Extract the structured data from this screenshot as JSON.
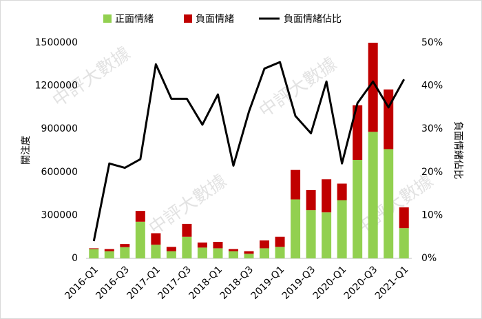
{
  "chart_data": {
    "type": "bar-line",
    "categories": [
      "2016-Q1",
      null,
      "2016-Q3",
      null,
      "2017-Q1",
      null,
      "2017-Q3",
      null,
      "2018-Q1",
      null,
      "2018-Q3",
      null,
      "2019-Q1",
      null,
      "2019-Q3",
      null,
      "2020-Q1",
      null,
      "2020-Q3",
      null,
      "2021-Q1"
    ],
    "series": [
      {
        "name": "正面情緒",
        "color": "#92d050",
        "kind": "bar",
        "values": [
          65000,
          50000,
          78000,
          255000,
          95000,
          50000,
          150000,
          75000,
          70000,
          50000,
          32000,
          70000,
          80000,
          410000,
          335000,
          320000,
          405000,
          685000,
          880000,
          760000,
          210000
        ]
      },
      {
        "name": "負面情緒",
        "color": "#c00000",
        "kind": "bar",
        "values": [
          5000,
          15000,
          22000,
          75000,
          80000,
          30000,
          90000,
          35000,
          45000,
          15000,
          18000,
          55000,
          70000,
          205000,
          140000,
          230000,
          115000,
          380000,
          620000,
          415000,
          145000
        ]
      },
      {
        "name": "負面情緒佔比",
        "color": "#000000",
        "kind": "line",
        "axis": "y2",
        "values": [
          4,
          22,
          21,
          23,
          45,
          37,
          37,
          31,
          38,
          21.5,
          34,
          44,
          45.5,
          33,
          29,
          41,
          22,
          36,
          41,
          35,
          41.5
        ]
      }
    ],
    "ylabel": "關注度",
    "y2label": "負面情緒佔比",
    "ylim": [
      0,
      1500000
    ],
    "yticks": [
      0,
      300000,
      600000,
      900000,
      1200000,
      1500000
    ],
    "y2lim": [
      0,
      50
    ],
    "y2ticks": [
      {
        "value": 0,
        "label": "0%"
      },
      {
        "value": 10,
        "label": "10%"
      },
      {
        "value": 20,
        "label": "20%"
      },
      {
        "value": 30,
        "label": "30%"
      },
      {
        "value": 40,
        "label": "40%"
      },
      {
        "value": 50,
        "label": "50%"
      }
    ],
    "legend": "top",
    "watermark": "中評大數據"
  }
}
